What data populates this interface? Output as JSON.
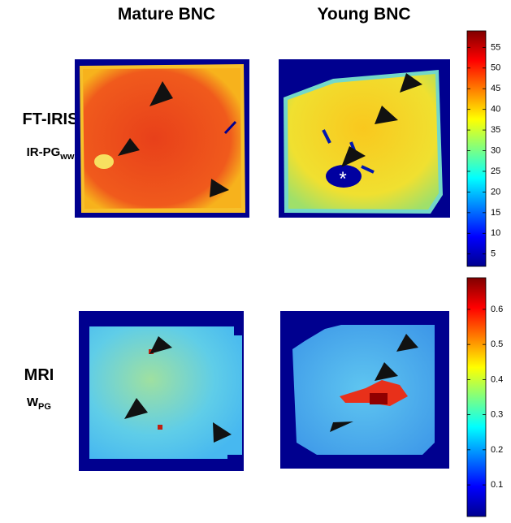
{
  "columns": [
    "Mature BNC",
    "Young BNC"
  ],
  "rows": [
    {
      "label": "FT-IRIS",
      "sublabel": "IR-PG",
      "sublabel_subscript": "ww",
      "colorbar": {
        "lim": [
          2,
          59
        ],
        "ticks": [
          5,
          10,
          15,
          20,
          25,
          30,
          35,
          40,
          45,
          50,
          55
        ]
      }
    },
    {
      "label": "MRI",
      "sublabel": "w",
      "sublabel_subscript": "PG",
      "colorbar": {
        "lim": [
          0.01,
          0.69
        ],
        "ticks": [
          0.1,
          0.2,
          0.3,
          0.4,
          0.5,
          0.6
        ]
      }
    }
  ]
}
